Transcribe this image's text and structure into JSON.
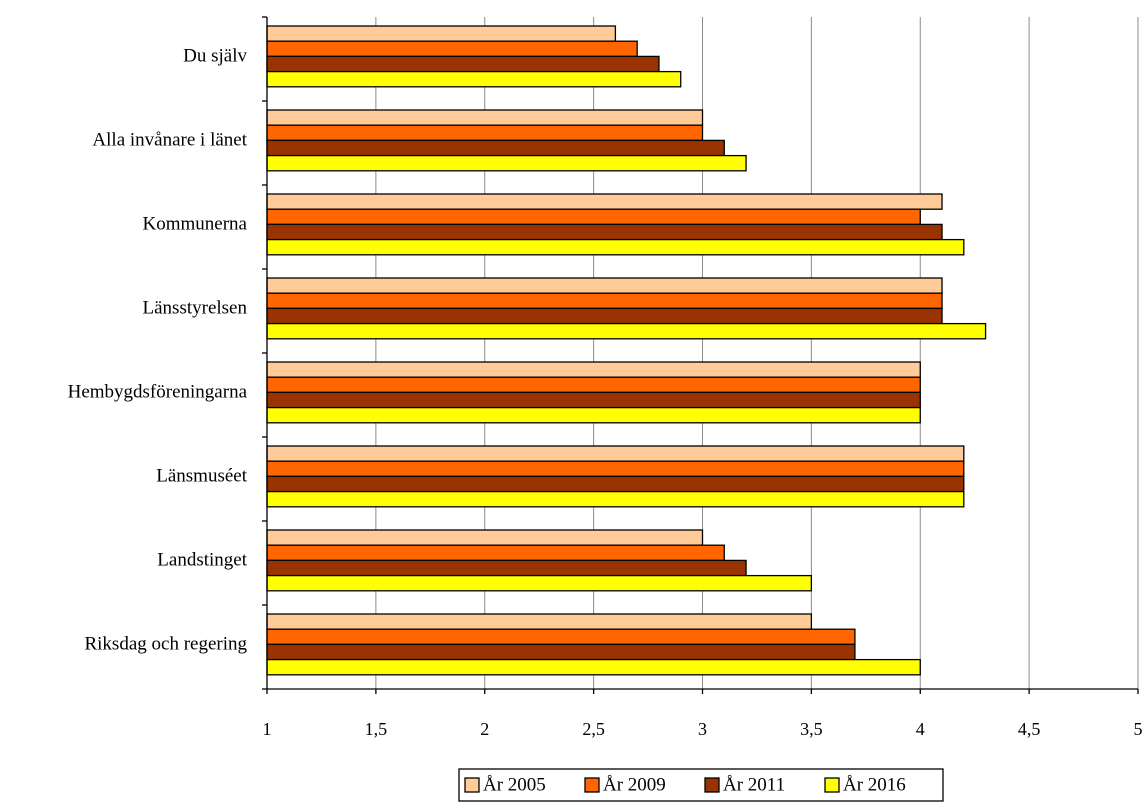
{
  "chart_data": {
    "type": "bar",
    "orientation": "horizontal",
    "title": "",
    "xlabel": "",
    "ylabel": "",
    "categories": [
      "Du själv",
      "Alla invånare i länet",
      "Kommunerna",
      "Länsstyrelsen",
      "Hembygdsföreningarna",
      "Länsmuséet",
      "Landstinget",
      "Riksdag och regering"
    ],
    "series": [
      {
        "name": "År 2005",
        "color": "#FFCC99",
        "values": [
          2.6,
          3.0,
          4.1,
          4.1,
          4.0,
          4.2,
          3.0,
          3.5
        ]
      },
      {
        "name": "År 2009",
        "color": "#FF6600",
        "values": [
          2.7,
          3.0,
          4.0,
          4.1,
          4.0,
          4.2,
          3.1,
          3.7
        ]
      },
      {
        "name": "År 2011",
        "color": "#993300",
        "values": [
          2.8,
          3.1,
          4.1,
          4.1,
          4.0,
          4.2,
          3.2,
          3.7
        ]
      },
      {
        "name": "År 2016",
        "color": "#FFFF00",
        "values": [
          2.9,
          3.2,
          4.2,
          4.3,
          4.0,
          4.2,
          3.5,
          4.0
        ]
      }
    ],
    "xlim": [
      1,
      5
    ],
    "x_ticks": [
      1,
      1.5,
      2,
      2.5,
      3,
      3.5,
      4,
      4.5,
      5
    ],
    "x_tick_labels": [
      "1",
      "1,5",
      "2",
      "2,5",
      "3",
      "3,5",
      "4",
      "4,5",
      "5"
    ],
    "grid": "vertical",
    "legend": "bottom"
  }
}
